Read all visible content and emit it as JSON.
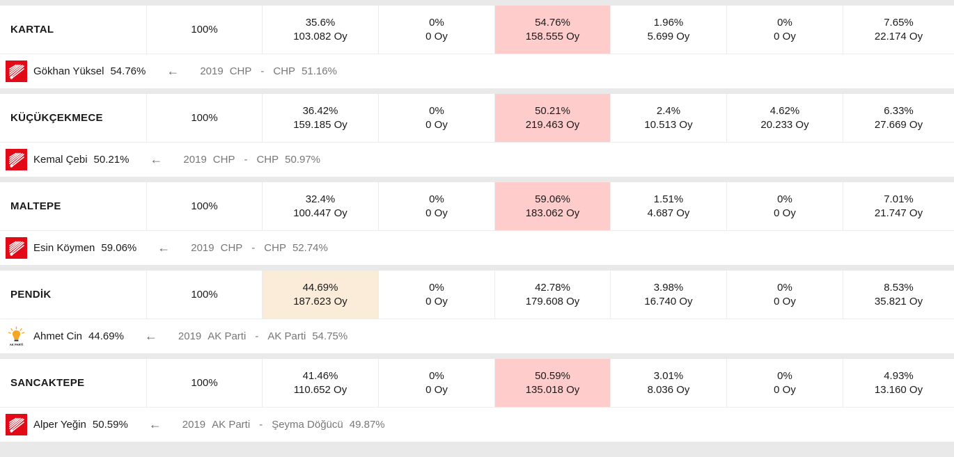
{
  "districts": [
    {
      "name": "KARTAL",
      "turnout": "100%",
      "cells": [
        {
          "pct": "35.6%",
          "votes": "103.082 Oy",
          "win": ""
        },
        {
          "pct": "0%",
          "votes": "0 Oy",
          "win": ""
        },
        {
          "pct": "54.76%",
          "votes": "158.555 Oy",
          "win": "chp"
        },
        {
          "pct": "1.96%",
          "votes": "5.699 Oy",
          "win": ""
        },
        {
          "pct": "0%",
          "votes": "0 Oy",
          "win": ""
        },
        {
          "pct": "7.65%",
          "votes": "22.174 Oy",
          "win": ""
        }
      ],
      "winner": {
        "party_icon": "chp-logo-icon",
        "name": "Gökhan Yüksel",
        "pct": "54.76%"
      },
      "history": {
        "year": "2019",
        "party": "CHP",
        "dash": "-",
        "winner": "CHP",
        "pct": "51.16%"
      }
    },
    {
      "name": "KÜÇÜKÇEKMECE",
      "turnout": "100%",
      "cells": [
        {
          "pct": "36.42%",
          "votes": "159.185 Oy",
          "win": ""
        },
        {
          "pct": "0%",
          "votes": "0 Oy",
          "win": ""
        },
        {
          "pct": "50.21%",
          "votes": "219.463 Oy",
          "win": "chp"
        },
        {
          "pct": "2.4%",
          "votes": "10.513 Oy",
          "win": ""
        },
        {
          "pct": "4.62%",
          "votes": "20.233 Oy",
          "win": ""
        },
        {
          "pct": "6.33%",
          "votes": "27.669 Oy",
          "win": ""
        }
      ],
      "winner": {
        "party_icon": "chp-logo-icon",
        "name": "Kemal Çebi",
        "pct": "50.21%"
      },
      "history": {
        "year": "2019",
        "party": "CHP",
        "dash": "-",
        "winner": "CHP",
        "pct": "50.97%"
      }
    },
    {
      "name": "MALTEPE",
      "turnout": "100%",
      "cells": [
        {
          "pct": "32.4%",
          "votes": "100.447 Oy",
          "win": ""
        },
        {
          "pct": "0%",
          "votes": "0 Oy",
          "win": ""
        },
        {
          "pct": "59.06%",
          "votes": "183.062 Oy",
          "win": "chp"
        },
        {
          "pct": "1.51%",
          "votes": "4.687 Oy",
          "win": ""
        },
        {
          "pct": "0%",
          "votes": "0 Oy",
          "win": ""
        },
        {
          "pct": "7.01%",
          "votes": "21.747 Oy",
          "win": ""
        }
      ],
      "winner": {
        "party_icon": "chp-logo-icon",
        "name": "Esin Köymen",
        "pct": "59.06%"
      },
      "history": {
        "year": "2019",
        "party": "CHP",
        "dash": "-",
        "winner": "CHP",
        "pct": "52.74%"
      }
    },
    {
      "name": "PENDİK",
      "turnout": "100%",
      "cells": [
        {
          "pct": "44.69%",
          "votes": "187.623 Oy",
          "win": "akp"
        },
        {
          "pct": "0%",
          "votes": "0 Oy",
          "win": ""
        },
        {
          "pct": "42.78%",
          "votes": "179.608 Oy",
          "win": ""
        },
        {
          "pct": "3.98%",
          "votes": "16.740 Oy",
          "win": ""
        },
        {
          "pct": "0%",
          "votes": "0 Oy",
          "win": ""
        },
        {
          "pct": "8.53%",
          "votes": "35.821 Oy",
          "win": ""
        }
      ],
      "winner": {
        "party_icon": "akparti-logo-icon",
        "name": "Ahmet Cin",
        "pct": "44.69%"
      },
      "history": {
        "year": "2019",
        "party": "AK Parti",
        "dash": "-",
        "winner": "AK Parti",
        "pct": "54.75%"
      }
    },
    {
      "name": "SANCAKTEPE",
      "turnout": "100%",
      "cells": [
        {
          "pct": "41.46%",
          "votes": "110.652 Oy",
          "win": ""
        },
        {
          "pct": "0%",
          "votes": "0 Oy",
          "win": ""
        },
        {
          "pct": "50.59%",
          "votes": "135.018 Oy",
          "win": "chp"
        },
        {
          "pct": "3.01%",
          "votes": "8.036 Oy",
          "win": ""
        },
        {
          "pct": "0%",
          "votes": "0 Oy",
          "win": ""
        },
        {
          "pct": "4.93%",
          "votes": "13.160 Oy",
          "win": ""
        }
      ],
      "winner": {
        "party_icon": "chp-logo-icon",
        "name": "Alper Yeğin",
        "pct": "50.59%"
      },
      "history": {
        "year": "2019",
        "party": "AK Parti",
        "dash": "-",
        "winner": "Şeyma Döğücü",
        "pct": "49.87%"
      }
    }
  ],
  "colors": {
    "chp_win_bg": "#ffcccc",
    "akp_win_bg": "#fbebd9",
    "chp_red": "#e30a17",
    "akp_yellow": "#f5a623"
  },
  "ak_logo_text": "AK PARTİ"
}
